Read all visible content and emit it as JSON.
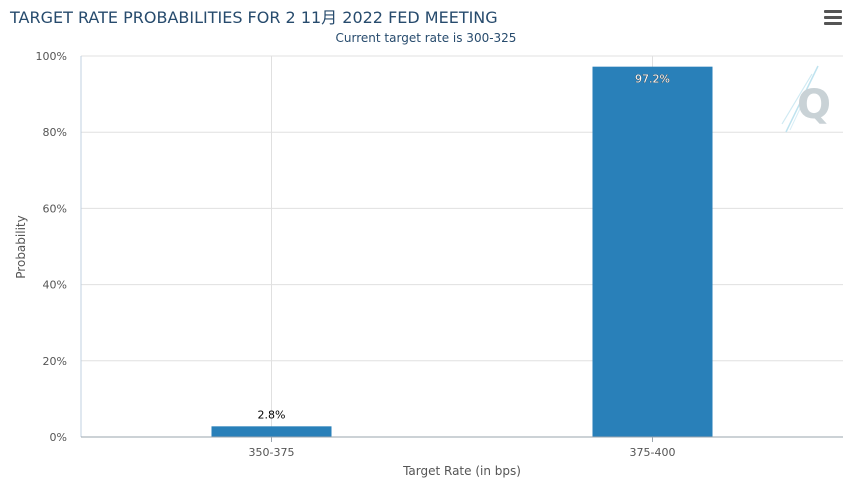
{
  "menu_icon": "hamburger-menu-icon",
  "logo_text": "Q",
  "chart_data": {
    "type": "bar",
    "title": "TARGET RATE PROBABILITIES FOR 2 11月 2022 FED MEETING",
    "subtitle": "Current target rate is 300-325",
    "categories": [
      "350-375",
      "375-400"
    ],
    "values": [
      2.8,
      97.2
    ],
    "data_labels": [
      "2.8%",
      "97.2%"
    ],
    "xlabel": "Target Rate (in bps)",
    "ylabel": "Probability",
    "ylim": [
      0,
      100
    ],
    "yticks": [
      "0%",
      "20%",
      "40%",
      "60%",
      "80%",
      "100%"
    ],
    "grid": true,
    "legend": "none",
    "colors": {
      "bar": "#2980b9",
      "grid": "#e0e0e0",
      "title": "#274b6d"
    }
  }
}
